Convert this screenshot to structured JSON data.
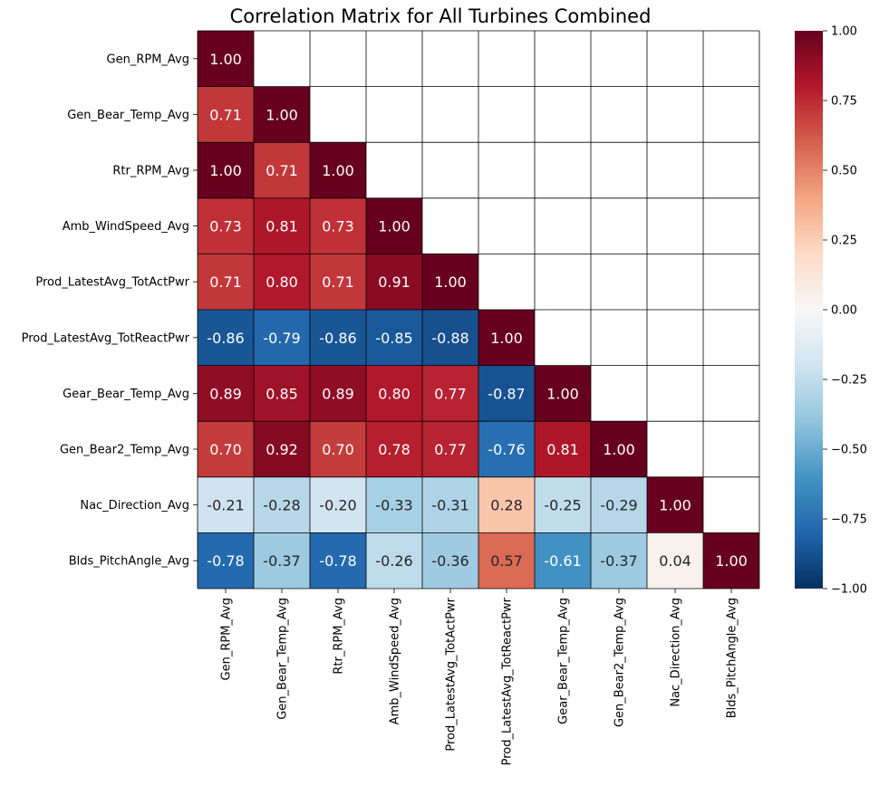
{
  "chart_data": {
    "type": "heatmap",
    "title": "Correlation Matrix for All Turbines Combined",
    "variables": [
      "Gen_RPM_Avg",
      "Gen_Bear_Temp_Avg",
      "Rtr_RPM_Avg",
      "Amb_WindSpeed_Avg",
      "Prod_LatestAvg_TotActPwr",
      "Prod_LatestAvg_TotReactPwr",
      "Gear_Bear_Temp_Avg",
      "Gen_Bear2_Temp_Avg",
      "Nac_Direction_Avg",
      "Blds_PitchAngle_Avg"
    ],
    "matrix": [
      [
        1.0
      ],
      [
        0.71,
        1.0
      ],
      [
        1.0,
        0.71,
        1.0
      ],
      [
        0.73,
        0.81,
        0.73,
        1.0
      ],
      [
        0.71,
        0.8,
        0.71,
        0.91,
        1.0
      ],
      [
        -0.86,
        -0.79,
        -0.86,
        -0.85,
        -0.88,
        1.0
      ],
      [
        0.89,
        0.85,
        0.89,
        0.8,
        0.77,
        -0.87,
        1.0
      ],
      [
        0.7,
        0.92,
        0.7,
        0.78,
        0.77,
        -0.76,
        0.81,
        1.0
      ],
      [
        -0.21,
        -0.28,
        -0.2,
        -0.33,
        -0.31,
        0.28,
        -0.25,
        -0.29,
        1.0
      ],
      [
        -0.78,
        -0.37,
        -0.78,
        -0.26,
        -0.36,
        0.57,
        -0.61,
        -0.37,
        0.04,
        1.0
      ]
    ],
    "display_labels": [
      [
        "1.00"
      ],
      [
        "0.71",
        "1.00"
      ],
      [
        "1.00",
        "0.71",
        "1.00"
      ],
      [
        "0.73",
        "0.81",
        "0.73",
        "1.00"
      ],
      [
        "0.71",
        "0.80",
        "0.71",
        "0.91",
        "1.00"
      ],
      [
        "-0.86",
        "-0.79",
        "-0.86",
        "-0.85",
        "-0.88",
        "1.00"
      ],
      [
        "0.89",
        "0.85",
        "0.89",
        "0.80",
        "0.77",
        "-0.87",
        "1.00"
      ],
      [
        "0.70",
        "0.92",
        "0.70",
        "0.78",
        "0.77",
        "-0.76",
        "0.81",
        "1.00"
      ],
      [
        "-0.21",
        "-0.28",
        "-0.20",
        "-0.33",
        "-0.31",
        "0.28",
        "-0.25",
        "-0.29",
        "1.00"
      ],
      [
        "-0.78",
        "-0.37",
        "-0.78",
        "-0.26",
        "-0.36",
        "0.57",
        "-0.61",
        "-0.37",
        "0.04",
        "1.00"
      ]
    ],
    "mask": "upper-triangle-empty",
    "vmin": -1.0,
    "vmax": 1.0,
    "colormap": "RdBu_r",
    "colorbar_ticks": [
      -1.0,
      -0.75,
      -0.5,
      -0.25,
      0.0,
      0.25,
      0.5,
      0.75,
      1.0
    ],
    "colorbar_tick_labels": [
      "−1.00",
      "−0.75",
      "−0.50",
      "−0.25",
      "0.00",
      "0.25",
      "0.50",
      "0.75",
      "1.00"
    ],
    "colorbar_placement": "right",
    "grid": true
  }
}
